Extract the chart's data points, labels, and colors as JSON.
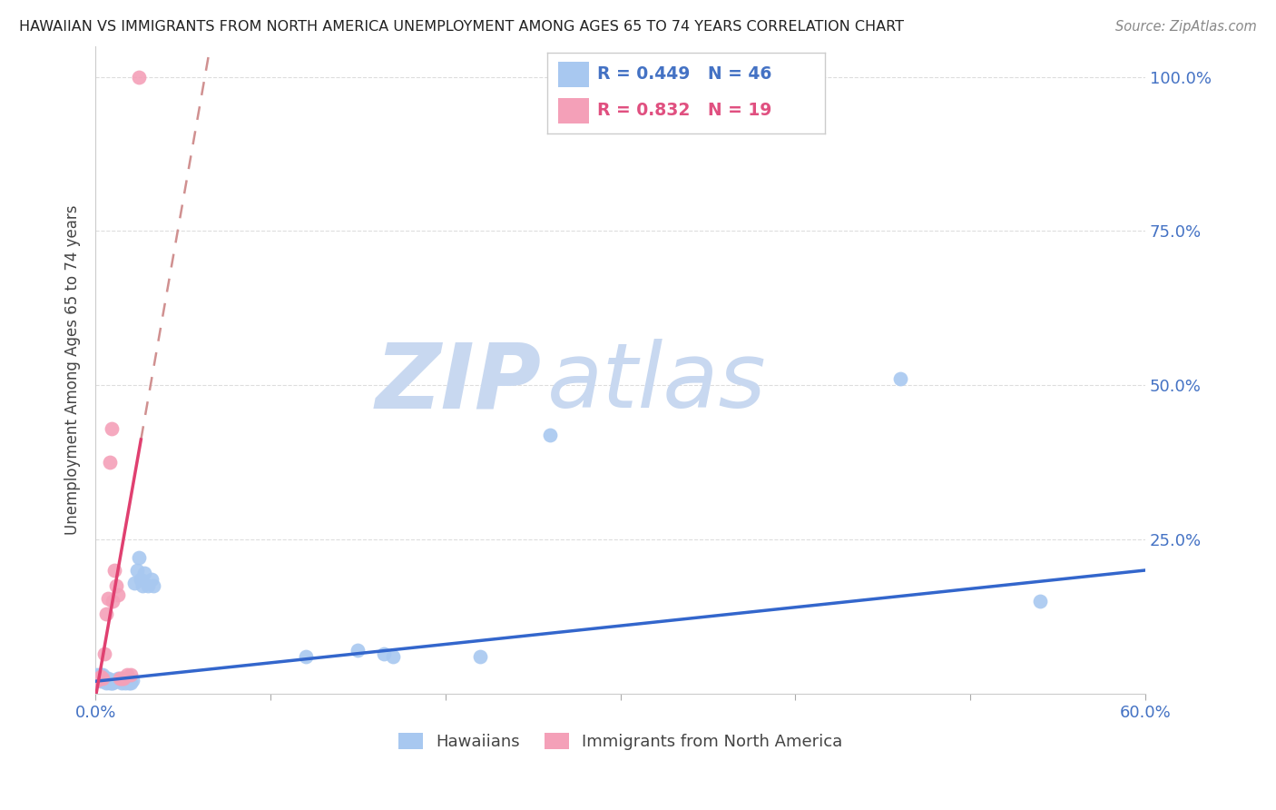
{
  "title": "HAWAIIAN VS IMMIGRANTS FROM NORTH AMERICA UNEMPLOYMENT AMONG AGES 65 TO 74 YEARS CORRELATION CHART",
  "source": "Source: ZipAtlas.com",
  "ylabel": "Unemployment Among Ages 65 to 74 years",
  "xlim": [
    0.0,
    0.6
  ],
  "ylim": [
    0.0,
    1.05
  ],
  "background_color": "#ffffff",
  "grid_color": "#dddddd",
  "title_color": "#222222",
  "axis_label_color": "#444444",
  "right_tick_color": "#4472c4",
  "hawaiians_color": "#a8c8f0",
  "immigrants_color": "#f4a0b8",
  "hawaiians_line_color": "#3366cc",
  "immigrants_line_color": "#e04070",
  "immigrants_dashed_color": "#ccaaaa",
  "R_hawaiians": 0.449,
  "N_hawaiians": 46,
  "R_immigrants": 0.832,
  "N_immigrants": 19,
  "hawaiians_x": [
    0.001,
    0.002,
    0.003,
    0.003,
    0.004,
    0.004,
    0.005,
    0.005,
    0.006,
    0.006,
    0.007,
    0.007,
    0.008,
    0.008,
    0.009,
    0.009,
    0.01,
    0.01,
    0.011,
    0.012,
    0.013,
    0.014,
    0.015,
    0.016,
    0.017,
    0.018,
    0.019,
    0.02,
    0.021,
    0.022,
    0.024,
    0.025,
    0.026,
    0.027,
    0.028,
    0.03,
    0.032,
    0.033,
    0.12,
    0.15,
    0.165,
    0.17,
    0.22,
    0.26,
    0.46,
    0.54
  ],
  "hawaiians_y": [
    0.03,
    0.025,
    0.02,
    0.03,
    0.025,
    0.03,
    0.025,
    0.02,
    0.018,
    0.025,
    0.02,
    0.025,
    0.018,
    0.022,
    0.02,
    0.018,
    0.018,
    0.022,
    0.02,
    0.022,
    0.025,
    0.02,
    0.018,
    0.02,
    0.018,
    0.02,
    0.018,
    0.018,
    0.022,
    0.18,
    0.2,
    0.22,
    0.185,
    0.175,
    0.195,
    0.175,
    0.185,
    0.175,
    0.06,
    0.07,
    0.065,
    0.06,
    0.06,
    0.42,
    0.51,
    0.15
  ],
  "immigrants_x": [
    0.001,
    0.002,
    0.003,
    0.004,
    0.005,
    0.006,
    0.007,
    0.008,
    0.009,
    0.01,
    0.011,
    0.012,
    0.013,
    0.014,
    0.015,
    0.016,
    0.018,
    0.02,
    0.025
  ],
  "immigrants_y": [
    0.022,
    0.025,
    0.028,
    0.025,
    0.065,
    0.13,
    0.155,
    0.375,
    0.43,
    0.15,
    0.2,
    0.175,
    0.16,
    0.025,
    0.025,
    0.025,
    0.03,
    0.03,
    1.0
  ],
  "watermark_zip_color": "#c0d0e8",
  "watermark_atlas_color": "#c8daf0",
  "legend_hawaiians_color": "#4472c4",
  "legend_immigrants_color": "#e05080"
}
